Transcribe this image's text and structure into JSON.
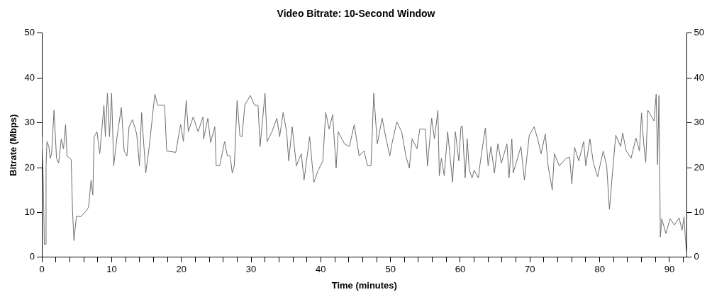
{
  "chart_data": {
    "type": "line",
    "title": "Video Bitrate: 10-Second Window",
    "xlabel": "Time (minutes)",
    "ylabel": "Bitrate (Mbps)",
    "xlim": [
      0,
      92.5
    ],
    "xticks": [
      0,
      {
        "value": 2,
        "label": null
      },
      {
        "value": 4,
        "label": null
      },
      {
        "value": 6,
        "label": null
      },
      {
        "value": 8,
        "label": null
      },
      10,
      {
        "value": 12,
        "label": null
      },
      {
        "value": 14,
        "label": null
      },
      {
        "value": 16,
        "label": null
      },
      {
        "value": 18,
        "label": null
      },
      20,
      {
        "value": 22,
        "label": null
      },
      {
        "value": 24,
        "label": null
      },
      {
        "value": 26,
        "label": null
      },
      {
        "value": 28,
        "label": null
      },
      30,
      {
        "value": 32,
        "label": null
      },
      {
        "value": 34,
        "label": null
      },
      {
        "value": 36,
        "label": null
      },
      {
        "value": 38,
        "label": null
      },
      40,
      {
        "value": 42,
        "label": null
      },
      {
        "value": 44,
        "label": null
      },
      {
        "value": 46,
        "label": null
      },
      {
        "value": 48,
        "label": null
      },
      50,
      {
        "value": 52,
        "label": null
      },
      {
        "value": 54,
        "label": null
      },
      {
        "value": 56,
        "label": null
      },
      {
        "value": 58,
        "label": null
      },
      60,
      {
        "value": 62,
        "label": null
      },
      {
        "value": 64,
        "label": null
      },
      {
        "value": 66,
        "label": null
      },
      {
        "value": 68,
        "label": null
      },
      70,
      {
        "value": 72,
        "label": null
      },
      {
        "value": 74,
        "label": null
      },
      {
        "value": 76,
        "label": null
      },
      {
        "value": 78,
        "label": null
      },
      80,
      {
        "value": 82,
        "label": null
      },
      {
        "value": 84,
        "label": null
      },
      {
        "value": 86,
        "label": null
      },
      {
        "value": 88,
        "label": null
      },
      90,
      {
        "value": 92,
        "label": null
      }
    ],
    "ylim": [
      0,
      50
    ],
    "yticks": [
      0,
      10,
      20,
      30,
      40,
      50
    ],
    "y2lim": [
      0,
      50
    ],
    "y2ticks": [
      0,
      10,
      20,
      30,
      40,
      50
    ],
    "grid": false,
    "legend": false,
    "marker": "none",
    "line_style": "solid",
    "series": [
      {
        "color": "#6e6e6e",
        "x": [
          0,
          0.2,
          0.35,
          0.55,
          0.6,
          0.73,
          1.0,
          1.2,
          1.4,
          1.74,
          2.1,
          2.4,
          2.78,
          3.1,
          3.4,
          3.6,
          4.2,
          4.4,
          4.6,
          4.95,
          5.6,
          6.3,
          6.7,
          7.05,
          7.3,
          7.5,
          7.9,
          8.3,
          8.9,
          9.1,
          9.4,
          9.7,
          10.0,
          10.3,
          10.8,
          11.4,
          11.8,
          12.2,
          12.5,
          13.0,
          13.6,
          14.0,
          14.3,
          14.9,
          15.4,
          16.2,
          16.6,
          17.6,
          17.9,
          19.2,
          19.9,
          20.3,
          20.7,
          21.0,
          21.7,
          22.4,
          23.1,
          23.2,
          23.8,
          24.2,
          24.8,
          25.0,
          25.5,
          26.2,
          26.6,
          27.0,
          27.3,
          27.6,
          28.0,
          28.4,
          28.7,
          29.1,
          29.9,
          30.5,
          31.0,
          31.3,
          32.0,
          32.3,
          33.0,
          33.7,
          34.1,
          34.6,
          35.1,
          35.4,
          35.9,
          36.5,
          37.2,
          37.6,
          38.4,
          39.0,
          39.6,
          40.3,
          40.7,
          41.2,
          41.7,
          42.2,
          42.5,
          43.4,
          44.1,
          44.8,
          45.5,
          46.2,
          46.7,
          47.2,
          47.6,
          48.1,
          48.8,
          49.3,
          49.9,
          50.2,
          50.9,
          51.6,
          52.2,
          52.7,
          53.1,
          53.8,
          54.2,
          55.0,
          55.3,
          55.9,
          56.3,
          56.8,
          57.0,
          57.3,
          57.7,
          58.2,
          58.9,
          59.3,
          59.8,
          60.1,
          60.3,
          60.7,
          61.0,
          61.3,
          61.7,
          62.0,
          62.6,
          62.9,
          63.6,
          64.0,
          64.4,
          64.9,
          65.4,
          65.9,
          66.7,
          67.0,
          67.4,
          67.6,
          68.7,
          69.2,
          69.9,
          70.6,
          71.1,
          71.6,
          72.2,
          72.6,
          73.2,
          73.5,
          74.2,
          75.2,
          75.7,
          76.0,
          76.4,
          77.0,
          77.7,
          78.0,
          78.6,
          79.1,
          79.7,
          80.5,
          81.0,
          81.4,
          81.8,
          82.3,
          83.0,
          83.3,
          83.8,
          84.5,
          85.2,
          85.7,
          86.0,
          86.3,
          86.6,
          86.9,
          87.8,
          88.1,
          88.3,
          88.5,
          88.7,
          88.9,
          89.5,
          90.1,
          90.7,
          91.4,
          91.8,
          92.1,
          92.3,
          92.5
        ],
        "values": [
          26.9,
          17.2,
          2.9,
          2.9,
          20.4,
          25.8,
          24.7,
          22.1,
          23.1,
          32.8,
          22.1,
          21.0,
          26.4,
          24.2,
          29.6,
          22.6,
          21.8,
          10.2,
          3.7,
          9.1,
          9.1,
          10.2,
          11.2,
          17.2,
          13.9,
          26.9,
          28.0,
          23.1,
          33.9,
          26.9,
          36.6,
          26.9,
          36.6,
          20.4,
          27.1,
          33.4,
          23.7,
          22.6,
          29.1,
          30.7,
          27.5,
          20.4,
          32.3,
          18.8,
          24.7,
          36.4,
          33.9,
          33.9,
          23.7,
          23.4,
          29.6,
          25.8,
          35.0,
          28.0,
          31.3,
          28.0,
          31.3,
          26.4,
          31.0,
          25.6,
          29.1,
          20.4,
          20.4,
          25.8,
          22.6,
          22.6,
          18.8,
          20.4,
          35.0,
          27.1,
          26.9,
          33.9,
          36.1,
          33.9,
          33.9,
          24.7,
          36.6,
          25.8,
          28.0,
          31.0,
          26.9,
          32.3,
          28.0,
          21.5,
          29.1,
          20.4,
          23.1,
          17.2,
          26.9,
          16.7,
          19.3,
          21.5,
          32.3,
          28.6,
          31.8,
          19.9,
          28.0,
          25.3,
          24.7,
          29.6,
          22.6,
          23.7,
          20.4,
          20.4,
          36.6,
          25.3,
          31.0,
          26.9,
          22.6,
          25.3,
          30.2,
          28.0,
          22.6,
          19.9,
          26.4,
          24.2,
          28.6,
          28.6,
          20.4,
          31.0,
          26.4,
          32.8,
          18.2,
          22.1,
          18.2,
          28.0,
          16.7,
          28.0,
          21.5,
          29.1,
          29.3,
          17.7,
          26.4,
          19.4,
          17.7,
          19.4,
          17.7,
          21.5,
          28.8,
          20.4,
          24.7,
          18.8,
          25.3,
          21.0,
          25.3,
          17.7,
          26.4,
          18.8,
          24.7,
          17.2,
          27.2,
          29.1,
          26.4,
          23.1,
          27.5,
          20.4,
          15.0,
          23.1,
          20.4,
          22.1,
          22.3,
          16.4,
          24.5,
          21.5,
          25.8,
          20.4,
          26.4,
          21.0,
          18.0,
          23.7,
          20.4,
          10.7,
          18.2,
          27.2,
          24.7,
          27.7,
          23.7,
          22.1,
          26.6,
          23.7,
          32.2,
          25.6,
          21.2,
          32.8,
          30.4,
          36.4,
          20.7,
          36.1,
          4.5,
          8.6,
          5.3,
          8.6,
          7.2,
          8.8,
          6.0,
          9.0,
          4.0,
          0.5
        ]
      }
    ]
  }
}
